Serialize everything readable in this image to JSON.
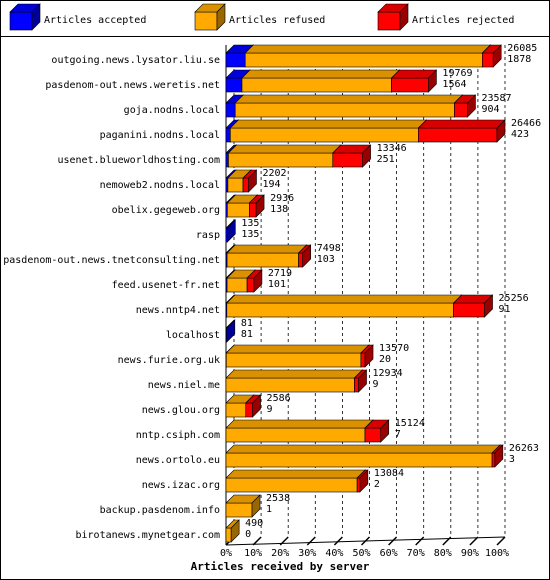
{
  "chart_data": {
    "type": "bar3d",
    "xlabel": "Articles received by server",
    "categories": [
      "outgoing.news.lysator.liu.se",
      "pasdenom-out.news.weretis.net",
      "goja.nodns.local",
      "paganini.nodns.local",
      "usenet.blueworldhosting.com",
      "nemoweb2.nodns.local",
      "obelix.gegeweb.org",
      "rasp",
      "pasdenom-out.news.tnetconsulting.net",
      "feed.usenet-fr.net",
      "news.nntp4.net",
      "localhost",
      "news.furie.org.uk",
      "news.niel.me",
      "news.glou.org",
      "nntp.csiph.com",
      "news.ortolo.eu",
      "news.izac.org",
      "backup.pasdenom.info",
      "birotanews.mynetgear.com"
    ],
    "series": [
      {
        "name": "Articles accepted",
        "color": "#0000ff",
        "values": [
          7.1,
          5.9,
          3.4,
          1.6,
          0.9,
          0.7,
          0.5,
          0.5,
          0.4,
          0.4,
          0.3,
          0.3,
          0.1,
          0,
          0,
          0,
          0,
          0,
          0,
          0
        ]
      },
      {
        "name": "Articles refused",
        "color": "#ffaa00",
        "values": [
          87.5,
          55.2,
          80.9,
          69.4,
          38.5,
          5.6,
          8.1,
          0,
          26.4,
          7.4,
          83.7,
          0,
          49.7,
          47.4,
          7.3,
          51.3,
          98.2,
          48.4,
          9.6,
          1.9
        ]
      },
      {
        "name": "Articles rejected",
        "color": "#ff0000",
        "values": [
          4.0,
          13.6,
          4.8,
          29.0,
          11.0,
          2.0,
          2.5,
          0,
          1.5,
          2.5,
          11.4,
          0,
          1.5,
          1.5,
          2.5,
          5.8,
          1.0,
          1.0,
          0,
          0
        ]
      }
    ],
    "totals": [
      26085,
      19769,
      23587,
      26466,
      13346,
      2202,
      2936,
      135,
      7498,
      2719,
      25256,
      81,
      13570,
      12934,
      2586,
      15124,
      26263,
      13084,
      2538,
      490
    ],
    "accepted_counts": [
      1878,
      1564,
      904,
      423,
      251,
      194,
      138,
      135,
      103,
      101,
      91,
      81,
      20,
      9,
      9,
      7,
      3,
      2,
      1,
      0
    ],
    "xlim": [
      0,
      100
    ],
    "xticks": [
      {
        "value": 0,
        "label": "0%"
      },
      {
        "value": 10,
        "label": "10%"
      },
      {
        "value": 20,
        "label": "20%"
      },
      {
        "value": 30,
        "label": "30%"
      },
      {
        "value": 40,
        "label": "40%"
      },
      {
        "value": 50,
        "label": "50%"
      },
      {
        "value": 60,
        "label": "60%"
      },
      {
        "value": 70,
        "label": "70%"
      },
      {
        "value": 80,
        "label": "80%"
      },
      {
        "value": 90,
        "label": "90%"
      },
      {
        "value": 100,
        "label": "100%"
      }
    ],
    "grid": true
  }
}
